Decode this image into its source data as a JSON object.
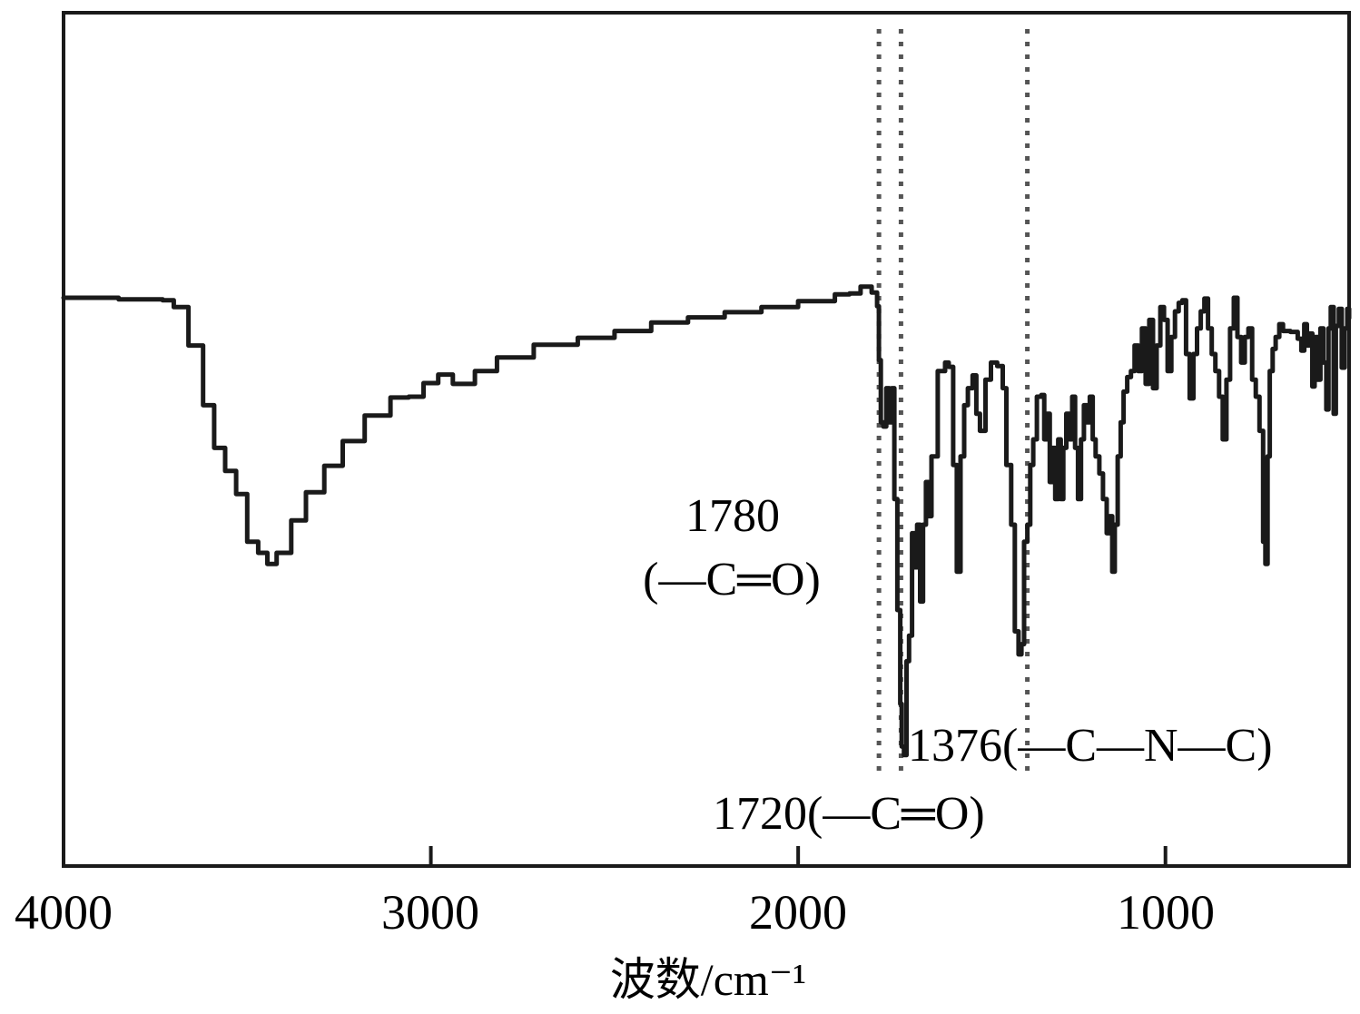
{
  "chart_data": {
    "type": "line",
    "title": "",
    "xlabel": "波数/cm⁻¹",
    "ylabel": "",
    "xlim": [
      4000,
      500
    ],
    "ylim": [
      0,
      100
    ],
    "x_reversed": true,
    "grid": false,
    "legend": "none",
    "xticks": [
      4000,
      3000,
      2000,
      1000
    ],
    "xtick_labels": [
      "4000",
      "3000",
      "2000",
      "1000"
    ],
    "series": [
      {
        "color": "#1a1a1a",
        "points": [
          [
            4000,
            66.6
          ],
          [
            3850,
            66.4
          ],
          [
            3730,
            66.3
          ],
          [
            3700,
            65.5
          ],
          [
            3660,
            61
          ],
          [
            3620,
            54
          ],
          [
            3590,
            49
          ],
          [
            3560,
            46.3
          ],
          [
            3530,
            43.6
          ],
          [
            3500,
            38
          ],
          [
            3470,
            36.7
          ],
          [
            3445,
            35.4
          ],
          [
            3420,
            36.7
          ],
          [
            3380,
            40.5
          ],
          [
            3340,
            43.8
          ],
          [
            3290,
            46.9
          ],
          [
            3240,
            49.8
          ],
          [
            3180,
            52.8
          ],
          [
            3110,
            54.9
          ],
          [
            3060,
            55
          ],
          [
            3020,
            56.6
          ],
          [
            2980,
            57.6
          ],
          [
            2940,
            56.5
          ],
          [
            2880,
            58
          ],
          [
            2820,
            59.6
          ],
          [
            2720,
            61.1
          ],
          [
            2600,
            61.9
          ],
          [
            2500,
            62.7
          ],
          [
            2400,
            63.7
          ],
          [
            2300,
            64.3
          ],
          [
            2200,
            64.9
          ],
          [
            2100,
            65.5
          ],
          [
            2000,
            66.2
          ],
          [
            1900,
            67
          ],
          [
            1860,
            67.1
          ],
          [
            1830,
            67.9
          ],
          [
            1800,
            67.2
          ],
          [
            1785,
            65.6
          ],
          [
            1780,
            59.3
          ],
          [
            1775,
            52
          ],
          [
            1768,
            51.5
          ],
          [
            1760,
            56
          ],
          [
            1752,
            52
          ],
          [
            1745,
            56
          ],
          [
            1738,
            43
          ],
          [
            1730,
            30
          ],
          [
            1722,
            19
          ],
          [
            1718,
            14
          ],
          [
            1712,
            13
          ],
          [
            1705,
            24
          ],
          [
            1698,
            27
          ],
          [
            1690,
            39
          ],
          [
            1683,
            35
          ],
          [
            1676,
            40
          ],
          [
            1668,
            31
          ],
          [
            1660,
            40
          ],
          [
            1652,
            45
          ],
          [
            1645,
            41
          ],
          [
            1637,
            48
          ],
          [
            1620,
            58
          ],
          [
            1600,
            59
          ],
          [
            1590,
            58.5
          ],
          [
            1578,
            47
          ],
          [
            1568,
            34.5
          ],
          [
            1558,
            48
          ],
          [
            1548,
            54
          ],
          [
            1538,
            56
          ],
          [
            1525,
            57.5
          ],
          [
            1515,
            53
          ],
          [
            1505,
            51
          ],
          [
            1490,
            57
          ],
          [
            1475,
            59
          ],
          [
            1458,
            58.6
          ],
          [
            1443,
            56
          ],
          [
            1433,
            47
          ],
          [
            1420,
            40
          ],
          [
            1410,
            27.5
          ],
          [
            1400,
            24.8
          ],
          [
            1392,
            26
          ],
          [
            1385,
            38
          ],
          [
            1376,
            40
          ],
          [
            1368,
            47
          ],
          [
            1360,
            50
          ],
          [
            1350,
            55
          ],
          [
            1338,
            55.2
          ],
          [
            1330,
            50
          ],
          [
            1322,
            53
          ],
          [
            1315,
            45
          ],
          [
            1308,
            49
          ],
          [
            1300,
            43
          ],
          [
            1292,
            50
          ],
          [
            1285,
            43
          ],
          [
            1278,
            49
          ],
          [
            1270,
            53
          ],
          [
            1262,
            50
          ],
          [
            1254,
            55
          ],
          [
            1246,
            49
          ],
          [
            1238,
            43
          ],
          [
            1230,
            50
          ],
          [
            1222,
            54
          ],
          [
            1214,
            52
          ],
          [
            1206,
            55
          ],
          [
            1198,
            50
          ],
          [
            1190,
            48
          ],
          [
            1180,
            46
          ],
          [
            1170,
            43
          ],
          [
            1160,
            39
          ],
          [
            1152,
            41
          ],
          [
            1145,
            34.5
          ],
          [
            1138,
            40
          ],
          [
            1130,
            48
          ],
          [
            1122,
            52
          ],
          [
            1114,
            55.6
          ],
          [
            1104,
            57.3
          ],
          [
            1094,
            58
          ],
          [
            1084,
            61
          ],
          [
            1074,
            58
          ],
          [
            1064,
            63
          ],
          [
            1054,
            56.5
          ],
          [
            1044,
            64
          ],
          [
            1034,
            56
          ],
          [
            1024,
            61
          ],
          [
            1014,
            65.5
          ],
          [
            1004,
            64
          ],
          [
            994,
            58
          ],
          [
            984,
            62
          ],
          [
            974,
            65
          ],
          [
            964,
            66
          ],
          [
            954,
            66.3
          ],
          [
            944,
            60
          ],
          [
            934,
            54.8
          ],
          [
            924,
            60
          ],
          [
            914,
            63
          ],
          [
            904,
            65
          ],
          [
            894,
            66.5
          ],
          [
            884,
            63
          ],
          [
            874,
            60
          ],
          [
            864,
            58
          ],
          [
            854,
            55
          ],
          [
            844,
            50
          ],
          [
            834,
            57
          ],
          [
            824,
            63
          ],
          [
            814,
            66.6
          ],
          [
            804,
            62
          ],
          [
            794,
            59
          ],
          [
            784,
            62
          ],
          [
            774,
            63
          ],
          [
            764,
            57
          ],
          [
            754,
            55
          ],
          [
            744,
            51
          ],
          [
            734,
            38
          ],
          [
            728,
            35.4
          ],
          [
            722,
            48
          ],
          [
            716,
            58
          ],
          [
            708,
            60.6
          ],
          [
            700,
            62
          ],
          [
            690,
            63.5
          ],
          [
            680,
            62.7
          ],
          [
            660,
            62.6
          ],
          [
            640,
            61.8
          ],
          [
            630,
            60.4
          ],
          [
            622,
            63.5
          ],
          [
            615,
            61
          ],
          [
            608,
            62.4
          ],
          [
            600,
            56.2
          ],
          [
            594,
            62
          ],
          [
            586,
            57
          ],
          [
            578,
            63
          ],
          [
            570,
            59
          ],
          [
            562,
            53.5
          ],
          [
            556,
            63
          ],
          [
            550,
            65.5
          ],
          [
            542,
            53
          ],
          [
            536,
            63.3
          ],
          [
            528,
            65.3
          ],
          [
            520,
            58.4
          ],
          [
            512,
            63
          ],
          [
            505,
            65.3
          ],
          [
            500,
            64.2
          ]
        ]
      }
    ],
    "reference_lines": [
      {
        "x": 1780,
        "style": "dotted",
        "color": "#555555"
      },
      {
        "x": 1720,
        "style": "dotted",
        "color": "#555555"
      },
      {
        "x": 1376,
        "style": "dotted",
        "color": "#555555"
      }
    ],
    "annotations": [
      {
        "lines": [
          "1780",
          "(—C═O)"
        ]
      },
      {
        "lines": [
          "1376(—C—N—C)"
        ]
      },
      {
        "lines": [
          "1720(—C═O)"
        ]
      }
    ]
  }
}
